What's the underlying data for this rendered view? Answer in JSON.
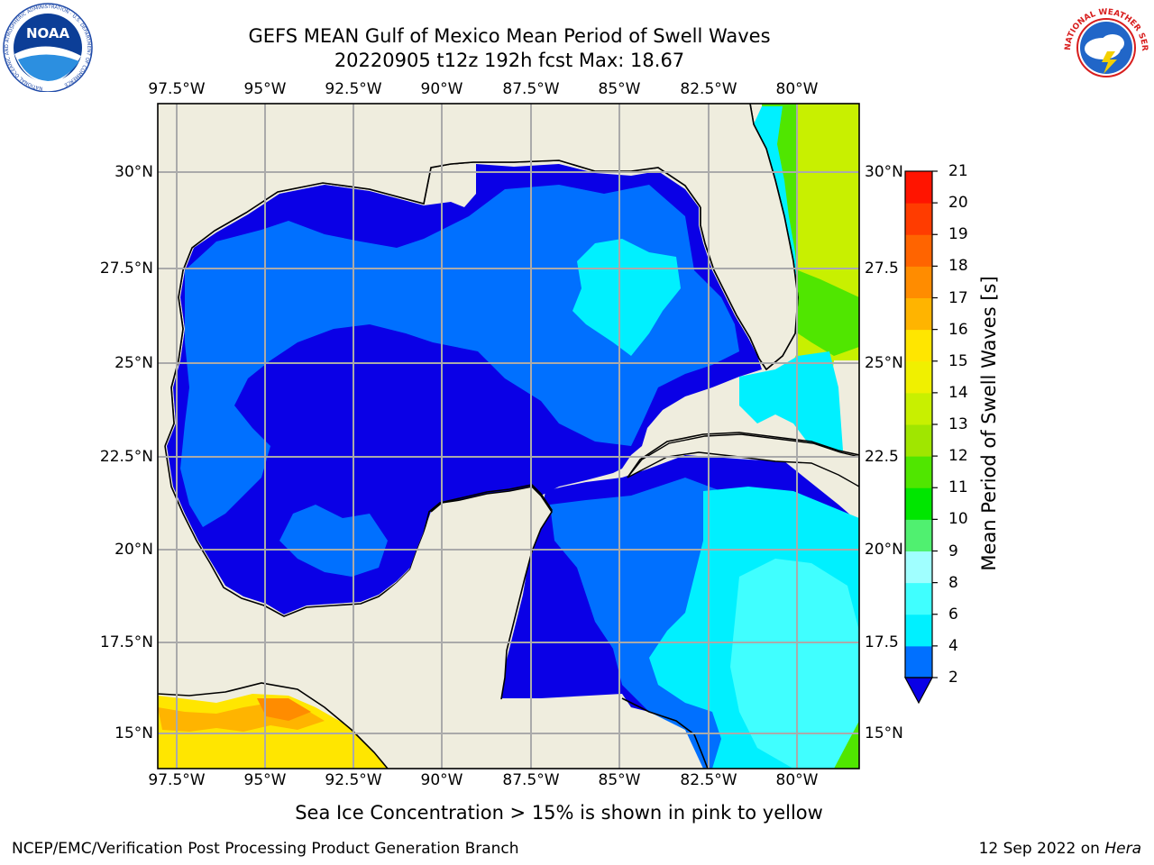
{
  "title": {
    "line1": "GEFS MEAN Gulf of Mexico Mean Period of Swell Waves",
    "line2": "20220905 t12z 192h fcst   Max: 18.67"
  },
  "map": {
    "lon_ticks": [
      "97.5°W",
      "95°W",
      "92.5°W",
      "90°W",
      "87.5°W",
      "85°W",
      "82.5°W",
      "80°W"
    ],
    "lat_ticks": [
      "30°N",
      "27.5°N",
      "25°N",
      "22.5°N",
      "20°N",
      "17.5°N",
      "15°N"
    ],
    "lat_ticks_right": [
      "30°N",
      "27.5",
      "25°N",
      "22.5",
      "20°N",
      "17.5",
      "15°N"
    ],
    "land_color": "#efedde",
    "grid_color": "#aaaaaa"
  },
  "colorbar": {
    "label": "Mean Period of Swell Waves [s]",
    "ticks": [
      "21",
      "20",
      "19",
      "18",
      "17",
      "16",
      "15",
      "14",
      "13",
      "12",
      "11",
      "10",
      "9",
      "8",
      "6",
      "4",
      "2"
    ],
    "colors": [
      "#0a00e6",
      "#0070ff",
      "#00f0ff",
      "#40ffff",
      "#a0ffff",
      "#50f070",
      "#00e600",
      "#50e600",
      "#a0e600",
      "#c8f000",
      "#f0f000",
      "#ffe600",
      "#ffb400",
      "#ff8c00",
      "#ff6400",
      "#ff3c00",
      "#ff1400",
      "#fa0000"
    ]
  },
  "note": "Sea Ice Concentration > 15% is shown in pink to yellow",
  "footer": {
    "left": "NCEP/EMC/Verification Post Processing Product Generation Branch",
    "date": "12 Sep 2022 on ",
    "host": "Hera"
  },
  "logos": {
    "noaa": "NOAA",
    "noaa_ring": "NATIONAL OCEANIC AND ATMOSPHERIC ADMINISTRATION · U.S. DEPARTMENT OF COMMERCE",
    "nws_ring": "NATIONAL WEATHER SERVICE"
  }
}
